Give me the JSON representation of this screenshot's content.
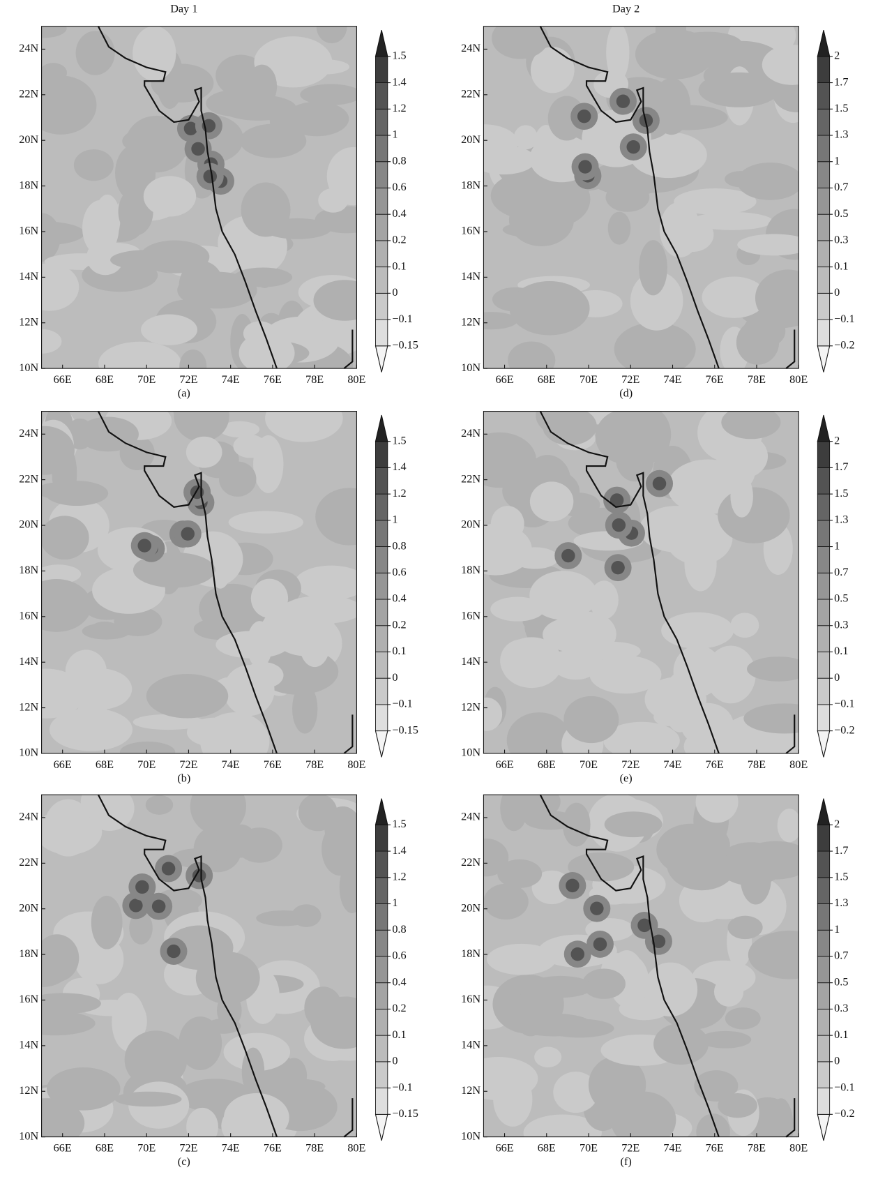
{
  "chart_data": [
    {
      "type": "contour",
      "title": "Day 1",
      "panel_label": "(a)",
      "xlim": [
        65,
        80
      ],
      "ylim": [
        10,
        25
      ],
      "xticks": [
        {
          "value": 66,
          "label": "66E"
        },
        {
          "value": 68,
          "label": "68E"
        },
        {
          "value": 70,
          "label": "70E"
        },
        {
          "value": 72,
          "label": "72E"
        },
        {
          "value": 74,
          "label": "74E"
        },
        {
          "value": 76,
          "label": "76E"
        },
        {
          "value": 78,
          "label": "78E"
        },
        {
          "value": 80,
          "label": "80E"
        }
      ],
      "yticks": [
        {
          "value": 10,
          "label": "10N"
        },
        {
          "value": 12,
          "label": "12N"
        },
        {
          "value": 14,
          "label": "14N"
        },
        {
          "value": 16,
          "label": "16N"
        },
        {
          "value": 18,
          "label": "18N"
        },
        {
          "value": 20,
          "label": "20N"
        },
        {
          "value": 22,
          "label": "22N"
        },
        {
          "value": 24,
          "label": "24N"
        }
      ],
      "levels": [
        {
          "value": -0.15,
          "label": "−0.15"
        },
        {
          "value": -0.1,
          "label": "−0.1"
        },
        0,
        0.1,
        0.2,
        0.4,
        0.6,
        0.8,
        1,
        1.2,
        1.4,
        1.5
      ],
      "colors": [
        "#f4f4f4",
        "#dedede",
        "#cacaca",
        "#bcbcbc",
        "#b0b0b0",
        "#a4a4a4",
        "#969696",
        "#878787",
        "#777777",
        "#656565",
        "#535353",
        "#3d3d3d",
        "#222222"
      ]
    },
    {
      "type": "contour",
      "panel_label": "(b)",
      "xlim": [
        65,
        80
      ],
      "ylim": [
        10,
        25
      ],
      "xticks": [
        {
          "value": 66,
          "label": "66E"
        },
        {
          "value": 68,
          "label": "68E"
        },
        {
          "value": 70,
          "label": "70E"
        },
        {
          "value": 72,
          "label": "72E"
        },
        {
          "value": 74,
          "label": "74E"
        },
        {
          "value": 76,
          "label": "76E"
        },
        {
          "value": 78,
          "label": "78E"
        },
        {
          "value": 80,
          "label": "80E"
        }
      ],
      "yticks": [
        {
          "value": 10,
          "label": "10N"
        },
        {
          "value": 12,
          "label": "12N"
        },
        {
          "value": 14,
          "label": "14N"
        },
        {
          "value": 16,
          "label": "16N"
        },
        {
          "value": 18,
          "label": "18N"
        },
        {
          "value": 20,
          "label": "20N"
        },
        {
          "value": 22,
          "label": "22N"
        },
        {
          "value": 24,
          "label": "24N"
        }
      ],
      "levels": [
        {
          "value": -0.15,
          "label": "−0.15"
        },
        {
          "value": -0.1,
          "label": "−0.1"
        },
        0,
        0.1,
        0.2,
        0.4,
        0.6,
        0.8,
        1,
        1.2,
        1.4,
        1.5
      ],
      "colors": [
        "#f4f4f4",
        "#dedede",
        "#cacaca",
        "#bcbcbc",
        "#b0b0b0",
        "#a4a4a4",
        "#969696",
        "#878787",
        "#777777",
        "#656565",
        "#535353",
        "#3d3d3d",
        "#222222"
      ]
    },
    {
      "type": "contour",
      "panel_label": "(c)",
      "xlim": [
        65,
        80
      ],
      "ylim": [
        10,
        25
      ],
      "xticks": [
        {
          "value": 66,
          "label": "66E"
        },
        {
          "value": 68,
          "label": "68E"
        },
        {
          "value": 70,
          "label": "70E"
        },
        {
          "value": 72,
          "label": "72E"
        },
        {
          "value": 74,
          "label": "74E"
        },
        {
          "value": 76,
          "label": "76E"
        },
        {
          "value": 78,
          "label": "78E"
        },
        {
          "value": 80,
          "label": "80E"
        }
      ],
      "yticks": [
        {
          "value": 10,
          "label": "10N"
        },
        {
          "value": 12,
          "label": "12N"
        },
        {
          "value": 14,
          "label": "14N"
        },
        {
          "value": 16,
          "label": "16N"
        },
        {
          "value": 18,
          "label": "18N"
        },
        {
          "value": 20,
          "label": "20N"
        },
        {
          "value": 22,
          "label": "22N"
        },
        {
          "value": 24,
          "label": "24N"
        }
      ],
      "levels": [
        {
          "value": -0.15,
          "label": "−0.15"
        },
        {
          "value": -0.1,
          "label": "−0.1"
        },
        0,
        0.1,
        0.2,
        0.4,
        0.6,
        0.8,
        1,
        1.2,
        1.4,
        1.5
      ],
      "colors": [
        "#f4f4f4",
        "#dedede",
        "#cacaca",
        "#bcbcbc",
        "#b0b0b0",
        "#a4a4a4",
        "#969696",
        "#878787",
        "#777777",
        "#656565",
        "#535353",
        "#3d3d3d",
        "#222222"
      ]
    },
    {
      "type": "contour",
      "title": "Day 2",
      "panel_label": "(d)",
      "xlim": [
        65,
        80
      ],
      "ylim": [
        10,
        25
      ],
      "xticks": [
        {
          "value": 66,
          "label": "66E"
        },
        {
          "value": 68,
          "label": "68E"
        },
        {
          "value": 70,
          "label": "70E"
        },
        {
          "value": 72,
          "label": "72E"
        },
        {
          "value": 74,
          "label": "74E"
        },
        {
          "value": 76,
          "label": "76E"
        },
        {
          "value": 78,
          "label": "78E"
        },
        {
          "value": 80,
          "label": "80E"
        }
      ],
      "yticks": [
        {
          "value": 10,
          "label": "10N"
        },
        {
          "value": 12,
          "label": "12N"
        },
        {
          "value": 14,
          "label": "14N"
        },
        {
          "value": 16,
          "label": "16N"
        },
        {
          "value": 18,
          "label": "18N"
        },
        {
          "value": 20,
          "label": "20N"
        },
        {
          "value": 22,
          "label": "22N"
        },
        {
          "value": 24,
          "label": "24N"
        }
      ],
      "levels": [
        {
          "value": -0.2,
          "label": "−0.2"
        },
        {
          "value": -0.1,
          "label": "−0.1"
        },
        0,
        0.1,
        0.3,
        0.5,
        0.7,
        1,
        1.3,
        1.5,
        1.7,
        2
      ],
      "colors": [
        "#f4f4f4",
        "#dedede",
        "#cacaca",
        "#bcbcbc",
        "#b0b0b0",
        "#a4a4a4",
        "#969696",
        "#878787",
        "#777777",
        "#656565",
        "#535353",
        "#3d3d3d",
        "#222222"
      ]
    },
    {
      "type": "contour",
      "panel_label": "(e)",
      "xlim": [
        65,
        80
      ],
      "ylim": [
        10,
        25
      ],
      "xticks": [
        {
          "value": 66,
          "label": "66E"
        },
        {
          "value": 68,
          "label": "68E"
        },
        {
          "value": 70,
          "label": "70E"
        },
        {
          "value": 72,
          "label": "72E"
        },
        {
          "value": 74,
          "label": "74E"
        },
        {
          "value": 76,
          "label": "76E"
        },
        {
          "value": 78,
          "label": "78E"
        },
        {
          "value": 80,
          "label": "80E"
        }
      ],
      "yticks": [
        {
          "value": 10,
          "label": "10N"
        },
        {
          "value": 12,
          "label": "12N"
        },
        {
          "value": 14,
          "label": "14N"
        },
        {
          "value": 16,
          "label": "16N"
        },
        {
          "value": 18,
          "label": "18N"
        },
        {
          "value": 20,
          "label": "20N"
        },
        {
          "value": 22,
          "label": "22N"
        },
        {
          "value": 24,
          "label": "24N"
        }
      ],
      "levels": [
        {
          "value": -0.2,
          "label": "−0.2"
        },
        {
          "value": -0.1,
          "label": "−0.1"
        },
        0,
        0.1,
        0.3,
        0.5,
        0.7,
        1,
        1.3,
        1.5,
        1.7,
        2
      ],
      "colors": [
        "#f4f4f4",
        "#dedede",
        "#cacaca",
        "#bcbcbc",
        "#b0b0b0",
        "#a4a4a4",
        "#969696",
        "#878787",
        "#777777",
        "#656565",
        "#535353",
        "#3d3d3d",
        "#222222"
      ]
    },
    {
      "type": "contour",
      "panel_label": "(f)",
      "xlim": [
        65,
        80
      ],
      "ylim": [
        10,
        25
      ],
      "xticks": [
        {
          "value": 66,
          "label": "66E"
        },
        {
          "value": 68,
          "label": "68E"
        },
        {
          "value": 70,
          "label": "70E"
        },
        {
          "value": 72,
          "label": "72E"
        },
        {
          "value": 74,
          "label": "74E"
        },
        {
          "value": 76,
          "label": "76E"
        },
        {
          "value": 78,
          "label": "78E"
        },
        {
          "value": 80,
          "label": "80E"
        }
      ],
      "yticks": [
        {
          "value": 10,
          "label": "10N"
        },
        {
          "value": 12,
          "label": "12N"
        },
        {
          "value": 14,
          "label": "14N"
        },
        {
          "value": 16,
          "label": "16N"
        },
        {
          "value": 18,
          "label": "18N"
        },
        {
          "value": 20,
          "label": "20N"
        },
        {
          "value": 22,
          "label": "22N"
        },
        {
          "value": 24,
          "label": "24N"
        }
      ],
      "levels": [
        {
          "value": -0.2,
          "label": "−0.2"
        },
        {
          "value": -0.1,
          "label": "−0.1"
        },
        0,
        0.1,
        0.3,
        0.5,
        0.7,
        1,
        1.3,
        1.5,
        1.7,
        2
      ],
      "colors": [
        "#f4f4f4",
        "#dedede",
        "#cacaca",
        "#bcbcbc",
        "#b0b0b0",
        "#a4a4a4",
        "#969696",
        "#878787",
        "#777777",
        "#656565",
        "#535353",
        "#3d3d3d",
        "#222222"
      ]
    }
  ]
}
